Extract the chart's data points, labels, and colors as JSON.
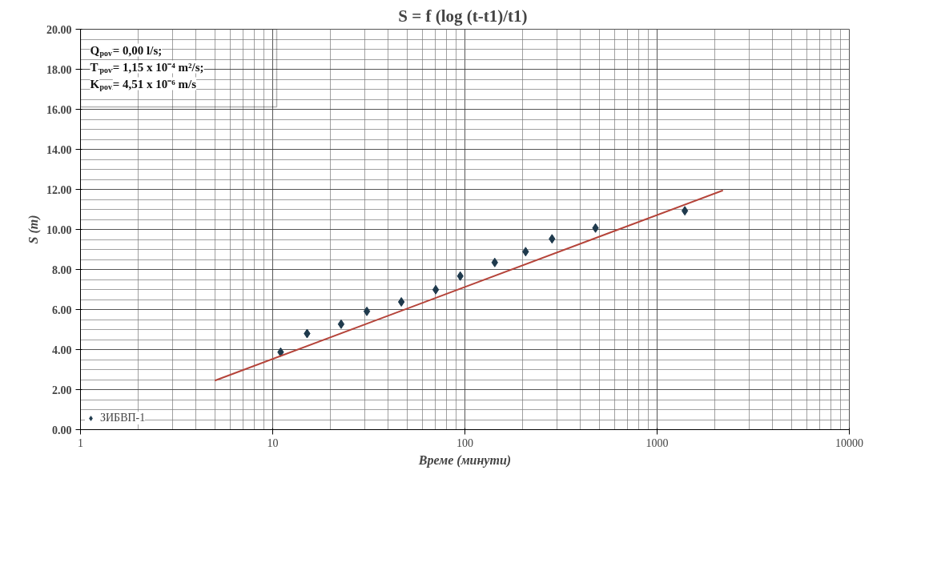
{
  "chart_data": {
    "type": "scatter",
    "title": "S = f (log  (t-t1)/t1)",
    "xlabel": "Време (минути)",
    "ylabel": "S (m)",
    "annotations": [
      "Q$_{pov}$= 0,00 l/s;",
      "T$_{pov}$= 1,15 x 10⁻⁴ m²/s;",
      "K$_{pov}$= 4,51 x 10⁻⁶ m/s"
    ],
    "log": "x",
    "xlim": [
      1,
      10000
    ],
    "xticks": [
      1,
      10,
      100,
      1000,
      10000
    ],
    "ylim": [
      0,
      20
    ],
    "yticks": [
      {
        "value": 0,
        "label": "0.00"
      },
      {
        "value": 2,
        "label": "2.00"
      },
      {
        "value": 4,
        "label": "4.00"
      },
      {
        "value": 6,
        "label": "6.00"
      },
      {
        "value": 8,
        "label": "8.00"
      },
      {
        "value": 10,
        "label": "10.00"
      },
      {
        "value": 12,
        "label": "12.00"
      },
      {
        "value": 14,
        "label": "14.00"
      },
      {
        "value": 16,
        "label": "16.00"
      },
      {
        "value": 18,
        "label": "18.00"
      },
      {
        "value": 20,
        "label": "20.00"
      }
    ],
    "grid": true,
    "legend": "bottom left",
    "series": [
      {
        "name": "ЗИБВП-1",
        "marker": "diamond",
        "color": "#1f3a4d",
        "x": [
          11.0,
          15.1,
          22.7,
          30.9,
          46.7,
          70.5,
          94.6,
          143,
          207,
          284,
          478,
          1394
        ],
        "values": [
          3.87,
          4.8,
          5.27,
          5.91,
          6.38,
          6.99,
          7.67,
          8.35,
          8.89,
          9.53,
          10.07,
          10.93
        ]
      },
      {
        "type": "line",
        "color": "#b5443a",
        "x": [
          5,
          2200
        ],
        "values": [
          2.45,
          11.95
        ]
      }
    ]
  }
}
